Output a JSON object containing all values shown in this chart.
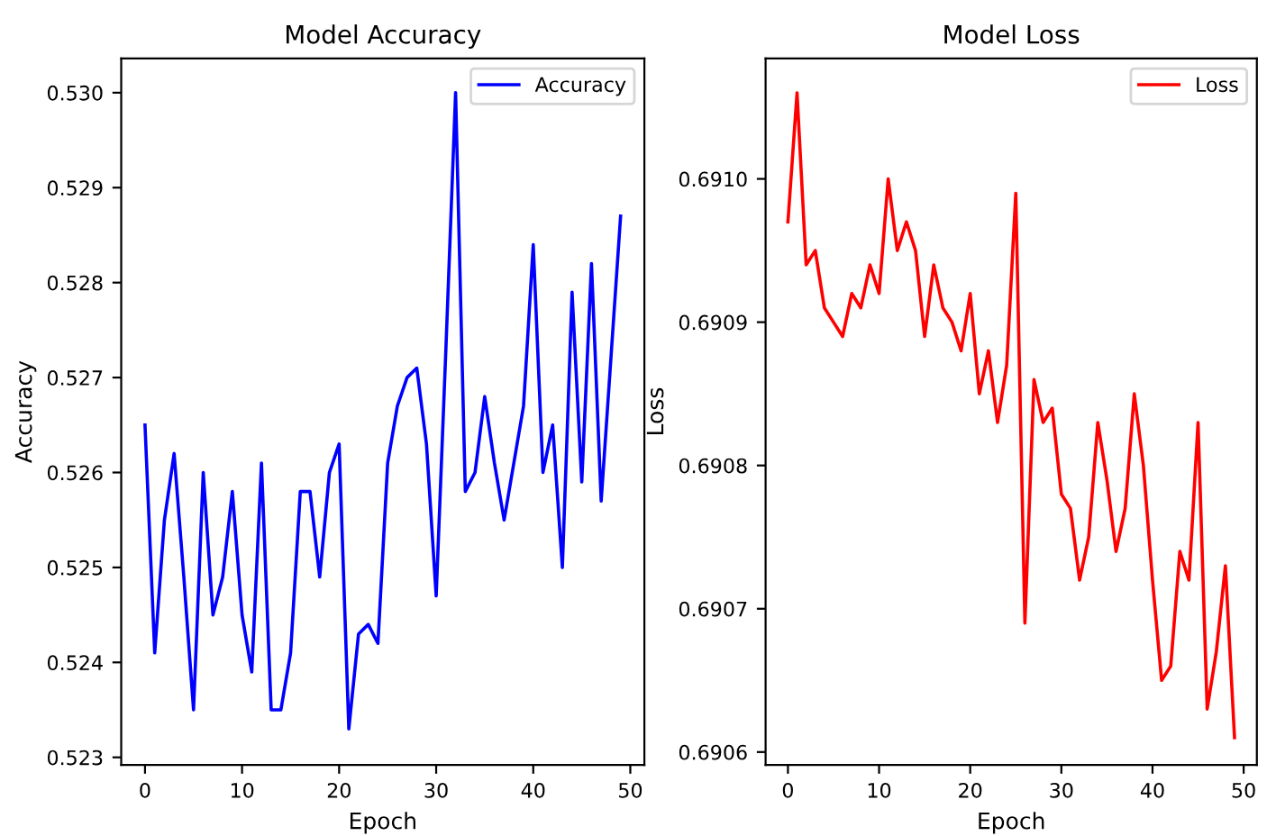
{
  "chart_data": [
    {
      "type": "line",
      "title": "Model Accuracy",
      "xlabel": "Epoch",
      "ylabel": "Accuracy",
      "x": [
        0,
        1,
        2,
        3,
        4,
        5,
        6,
        7,
        8,
        9,
        10,
        11,
        12,
        13,
        14,
        15,
        16,
        17,
        18,
        19,
        20,
        21,
        22,
        23,
        24,
        25,
        26,
        27,
        28,
        29,
        30,
        31,
        32,
        33,
        34,
        35,
        36,
        37,
        38,
        39,
        40,
        41,
        42,
        43,
        44,
        45,
        46,
        47,
        48,
        49
      ],
      "series": [
        {
          "name": "Accuracy",
          "color": "#0000ff",
          "values": [
            0.5265,
            0.5241,
            0.5255,
            0.5262,
            0.5249,
            0.5235,
            0.526,
            0.5245,
            0.5249,
            0.5258,
            0.5245,
            0.5239,
            0.5261,
            0.5235,
            0.5235,
            0.5241,
            0.5258,
            0.5258,
            0.5249,
            0.526,
            0.5263,
            0.5233,
            0.5243,
            0.5244,
            0.5242,
            0.5261,
            0.5267,
            0.527,
            0.5271,
            0.5263,
            0.5247,
            0.5273,
            0.53,
            0.5258,
            0.526,
            0.5268,
            0.5261,
            0.5255,
            0.5261,
            0.5267,
            0.5284,
            0.526,
            0.5265,
            0.525,
            0.5279,
            0.5259,
            0.5282,
            0.5257,
            0.5272,
            0.5287
          ]
        }
      ],
      "xlim": [
        -2.45,
        51.45
      ],
      "xticks": [
        0,
        10,
        20,
        30,
        40,
        50
      ],
      "ylim": [
        0.52292,
        0.53036
      ],
      "yticks": [
        0.523,
        0.524,
        0.525,
        0.526,
        0.527,
        0.528,
        0.529,
        {
          "value": 0.53,
          "label": "0.530"
        }
      ],
      "legend": "top right",
      "grid": false
    },
    {
      "type": "line",
      "title": "Model Loss",
      "xlabel": "Epoch",
      "ylabel": "Loss",
      "x": [
        0,
        1,
        2,
        3,
        4,
        5,
        6,
        7,
        8,
        9,
        10,
        11,
        12,
        13,
        14,
        15,
        16,
        17,
        18,
        19,
        20,
        21,
        22,
        23,
        24,
        25,
        26,
        27,
        28,
        29,
        30,
        31,
        32,
        33,
        34,
        35,
        36,
        37,
        38,
        39,
        40,
        41,
        42,
        43,
        44,
        45,
        46,
        47,
        48,
        49
      ],
      "series": [
        {
          "name": "Loss",
          "color": "#ff0000",
          "values": [
            0.69097,
            0.69106,
            0.69094,
            0.69095,
            0.69091,
            0.6909,
            0.69089,
            0.69092,
            0.69091,
            0.69094,
            0.69092,
            0.691,
            0.69095,
            0.69097,
            0.69095,
            0.69089,
            0.69094,
            0.69091,
            0.6909,
            0.69088,
            0.69092,
            0.69085,
            0.69088,
            0.69083,
            0.69087,
            0.69099,
            0.69069,
            0.69086,
            0.69083,
            0.69084,
            0.69078,
            0.69077,
            0.69072,
            0.69075,
            0.69083,
            0.69079,
            0.69074,
            0.69077,
            0.69085,
            0.6908,
            0.69072,
            0.69065,
            0.69066,
            0.69074,
            0.69072,
            0.69083,
            0.69063,
            0.69067,
            0.69073,
            0.69061
          ]
        }
      ],
      "xlim": [
        -2.45,
        51.45
      ],
      "xticks": [
        0,
        10,
        20,
        30,
        40,
        50
      ],
      "ylim": [
        0.690591,
        0.691084
      ],
      "yticks": [
        0.6906,
        0.6907,
        0.6908,
        0.6909,
        {
          "value": 0.691,
          "label": "0.6910"
        }
      ],
      "legend": "top right",
      "grid": false
    }
  ]
}
